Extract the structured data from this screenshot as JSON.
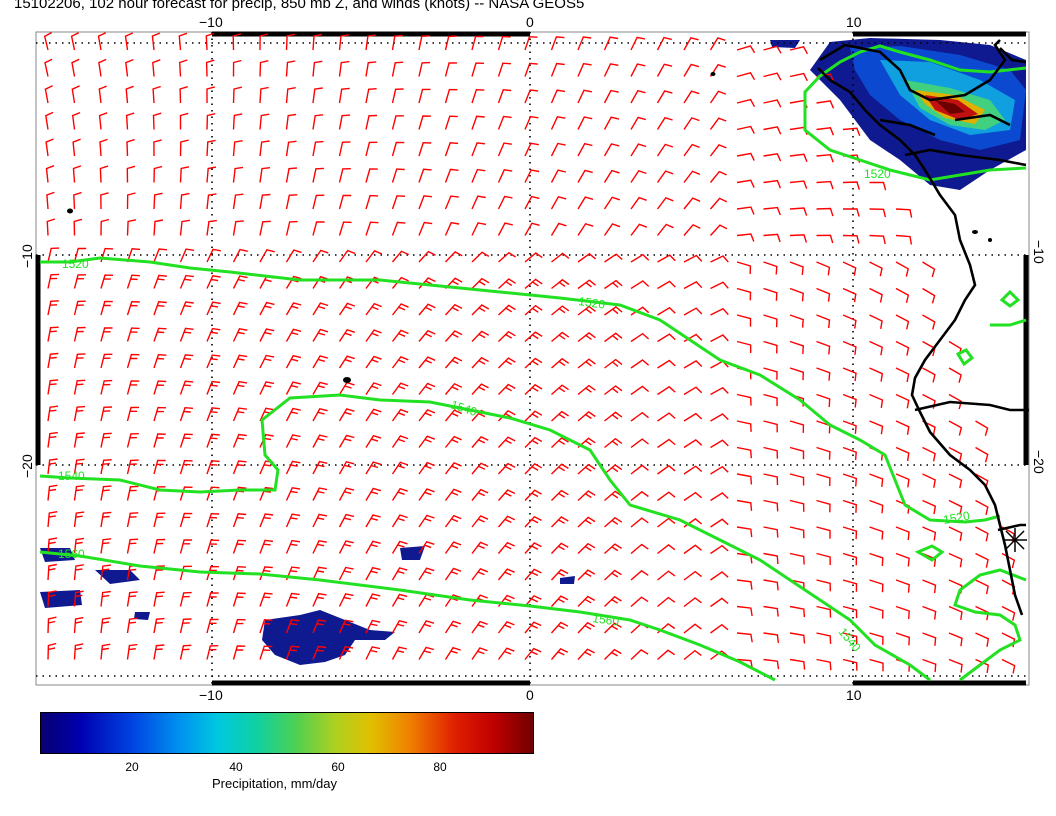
{
  "title": "15102206, 102 hour forecast for precip, 850 mb Z, and winds (knots) -- NASA GEOS5",
  "map": {
    "lon_ticks": [
      "−10",
      "0",
      "10"
    ],
    "lat_ticks": [
      "−10",
      "−20"
    ],
    "contour_labels": [
      "1520",
      "1520",
      "1520",
      "1540",
      "1540",
      "1560",
      "1560",
      "1540",
      "1520"
    ],
    "colors": {
      "wind_barbs": "#ff0000",
      "contours": "#00e000",
      "coastline": "#000000",
      "grid": "#000000"
    }
  },
  "colorbar": {
    "ticks": [
      "20",
      "40",
      "60",
      "80"
    ],
    "label": "Precipitation, mm/day"
  }
}
